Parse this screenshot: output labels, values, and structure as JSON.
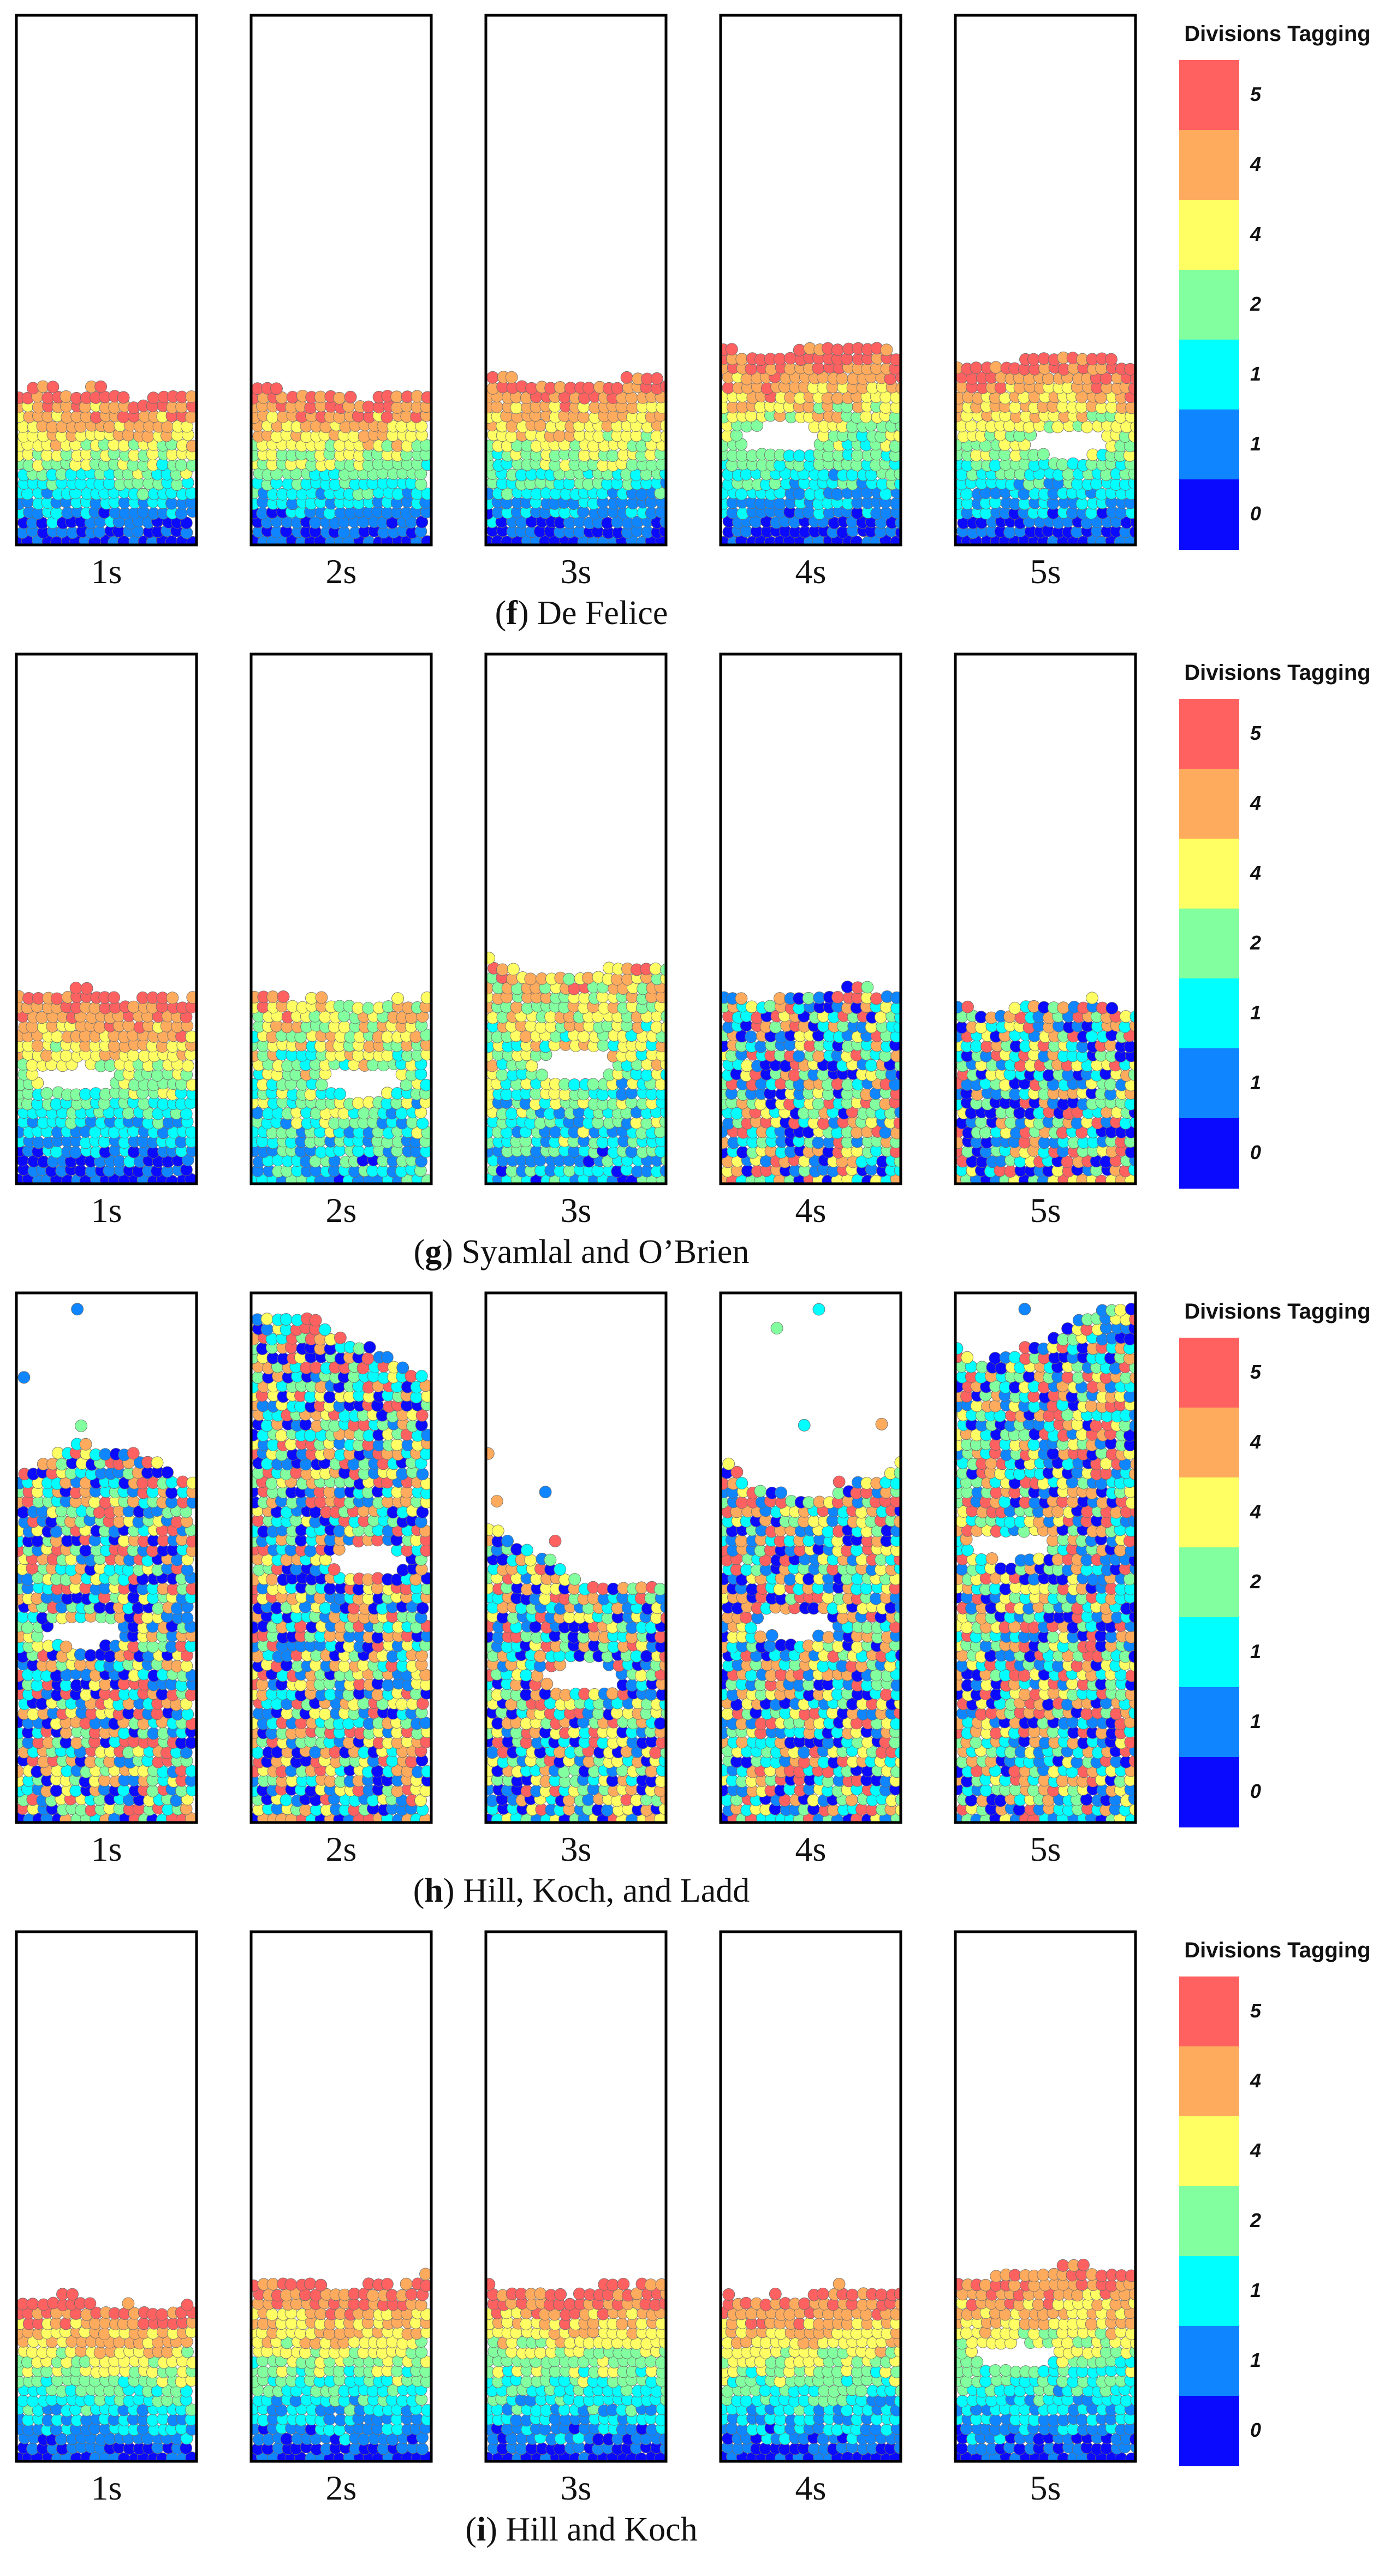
{
  "figure": {
    "time_labels": [
      "1s",
      "2s",
      "3s",
      "4s",
      "5s"
    ],
    "legend": {
      "title": "Divisions Tagging",
      "levels": [
        {
          "label": "5",
          "color": "#ff6161"
        },
        {
          "label": "4",
          "color": "#ffab5e"
        },
        {
          "label": "4",
          "color": "#ffff63"
        },
        {
          "label": "2",
          "color": "#82ff9e"
        },
        {
          "label": "1",
          "color": "#00ffff"
        },
        {
          "label": "1",
          "color": "#0f85ff"
        },
        {
          "label": "0",
          "color": "#0a0aff"
        }
      ]
    },
    "panels": [
      {
        "letter": "f",
        "open_paren": "(",
        "close_paren": ")",
        "name": " De Felice",
        "snapshots": [
          {
            "time": "1s",
            "bed_height_fraction": 0.29,
            "regime": "layered"
          },
          {
            "time": "2s",
            "bed_height_fraction": 0.29,
            "regime": "layered"
          },
          {
            "time": "3s",
            "bed_height_fraction": 0.31,
            "regime": "layered"
          },
          {
            "time": "4s",
            "bed_height_fraction": 0.37,
            "regime": "layered-bubble"
          },
          {
            "time": "5s",
            "bed_height_fraction": 0.35,
            "regime": "layered-bubble"
          }
        ]
      },
      {
        "letter": "g",
        "open_paren": "(",
        "close_paren": ")",
        "name": " Syamlal and O’Brien",
        "snapshots": [
          {
            "time": "1s",
            "bed_height_fraction": 0.36,
            "regime": "layered-bubble"
          },
          {
            "time": "2s",
            "bed_height_fraction": 0.35,
            "regime": "partially-mixed"
          },
          {
            "time": "3s",
            "bed_height_fraction": 0.41,
            "regime": "partially-mixed"
          },
          {
            "time": "4s",
            "bed_height_fraction": 0.36,
            "regime": "mixed"
          },
          {
            "time": "5s",
            "bed_height_fraction": 0.34,
            "regime": "mixed"
          }
        ]
      },
      {
        "letter": "h",
        "open_paren": "(",
        "close_paren": ")",
        "name": " Hill, Koch, and Ladd",
        "snapshots": [
          {
            "time": "1s",
            "bed_height_fraction": 0.65,
            "regime": "fluidized"
          },
          {
            "time": "2s",
            "bed_height_fraction": 0.9,
            "regime": "fluidized"
          },
          {
            "time": "3s",
            "bed_height_fraction": 0.5,
            "regime": "fluidized"
          },
          {
            "time": "4s",
            "bed_height_fraction": 0.68,
            "regime": "fluidized"
          },
          {
            "time": "5s",
            "bed_height_fraction": 0.95,
            "regime": "fluidized"
          }
        ]
      },
      {
        "letter": "i",
        "open_paren": "(",
        "close_paren": ")",
        "name": " Hill and Koch",
        "snapshots": [
          {
            "time": "1s",
            "bed_height_fraction": 0.3,
            "regime": "layered"
          },
          {
            "time": "2s",
            "bed_height_fraction": 0.34,
            "regime": "layered"
          },
          {
            "time": "3s",
            "bed_height_fraction": 0.33,
            "regime": "layered"
          },
          {
            "time": "4s",
            "bed_height_fraction": 0.32,
            "regime": "layered"
          },
          {
            "time": "5s",
            "bed_height_fraction": 0.36,
            "regime": "layered-bubble"
          }
        ]
      }
    ]
  }
}
